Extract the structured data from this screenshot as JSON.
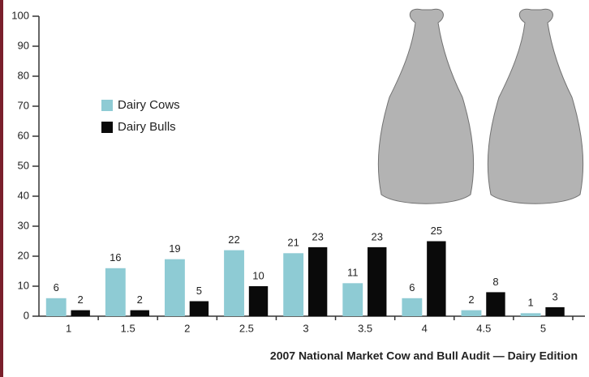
{
  "chart_data": {
    "type": "bar",
    "caption": "2007 National Market Cow and Bull Audit — Dairy Edition",
    "categories": [
      "1",
      "1.5",
      "2",
      "2.5",
      "3",
      "3.5",
      "4",
      "4.5",
      "5"
    ],
    "series": [
      {
        "name": "Dairy Cows",
        "color": "#8ecbd4",
        "values": [
          6,
          16,
          19,
          22,
          21,
          11,
          6,
          2,
          1
        ]
      },
      {
        "name": "Dairy Bulls",
        "color": "#0a0a0a",
        "values": [
          2,
          2,
          5,
          10,
          23,
          23,
          25,
          8,
          3
        ]
      }
    ],
    "ylim": [
      0,
      100
    ],
    "yticks": [
      0,
      10,
      20,
      30,
      40,
      50,
      60,
      70,
      80,
      90,
      100
    ]
  }
}
